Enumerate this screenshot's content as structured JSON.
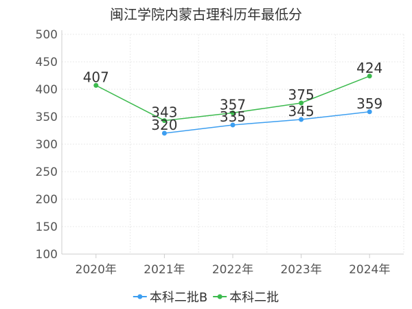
{
  "chart_data": {
    "type": "line",
    "title": "闽江学院内蒙古理科历年最低分",
    "categories": [
      "2020年",
      "2021年",
      "2022年",
      "2023年",
      "2024年"
    ],
    "ylim": [
      100,
      500
    ],
    "yticks": [
      100,
      150,
      200,
      250,
      300,
      350,
      400,
      450,
      500
    ],
    "grid": true,
    "legend_position": "bottom-center",
    "series": [
      {
        "name": "本科二批B",
        "color": "#3c9ef0",
        "values": [
          null,
          320,
          335,
          345,
          359
        ]
      },
      {
        "name": "本科二批",
        "color": "#3cba4e",
        "values": [
          407,
          343,
          357,
          375,
          424
        ]
      }
    ]
  }
}
